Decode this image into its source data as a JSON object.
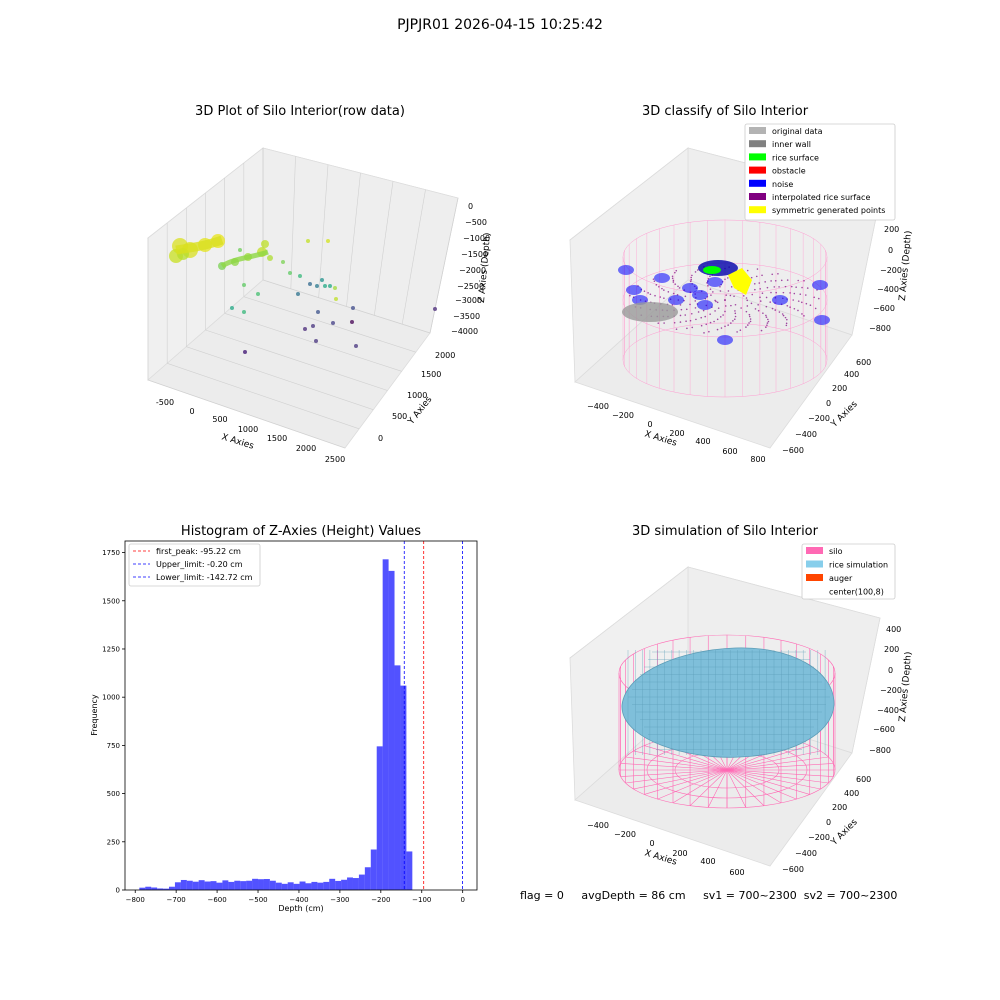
{
  "suptitle": "PJPJR01 2026-04-15 10:25:42",
  "panels": {
    "raw": {
      "title": "3D Plot of Silo Interior(row data)",
      "xlabel": "X Axies",
      "ylabel": "Y Axies",
      "zlabel": "Z Axies (Depth)",
      "xticks": [
        "-500",
        "0",
        "500",
        "1000",
        "1500",
        "2000",
        "2500"
      ],
      "yticks": [
        "0",
        "500",
        "1000",
        "1500",
        "2000"
      ],
      "zticks": [
        "0",
        "−500",
        "−1000",
        "−1500",
        "−2000",
        "−2500",
        "−3000",
        "−3500",
        "−4000"
      ],
      "colormap": "viridis"
    },
    "classify": {
      "title": "3D classify of Silo Interior",
      "xlabel": "X Axies",
      "ylabel": "Y Axies",
      "zlabel": "Z Axies (Depth)",
      "xticks": [
        "−400",
        "−200",
        "0",
        "200",
        "400",
        "600",
        "800"
      ],
      "yticks": [
        "−600",
        "−400",
        "−200",
        "0",
        "200",
        "400",
        "600"
      ],
      "zticks": [
        "200",
        "0",
        "−200",
        "−400",
        "−600",
        "−800"
      ],
      "legend": [
        {
          "label": "original data",
          "color": "#b3b3b3"
        },
        {
          "label": "inner wall",
          "color": "#808080"
        },
        {
          "label": "rice surface",
          "color": "#00ff00"
        },
        {
          "label": "obstacle",
          "color": "#ff0000"
        },
        {
          "label": "noise",
          "color": "#0000ff"
        },
        {
          "label": "interpolated rice surface",
          "color": "#800080"
        },
        {
          "label": "symmetric generated points",
          "color": "#ffff00"
        }
      ]
    },
    "simulation": {
      "title": "3D simulation of Silo Interior",
      "xlabel": "X Axies",
      "ylabel": "Y Axies",
      "zlabel": "Z Axies (Depth)",
      "xticks": [
        "−400",
        "−200",
        "0",
        "200",
        "400",
        "600"
      ],
      "yticks": [
        "−600",
        "−400",
        "−200",
        "0",
        "200",
        "400",
        "600"
      ],
      "zticks": [
        "400",
        "200",
        "0",
        "−200",
        "−400",
        "−600",
        "−800"
      ],
      "legend": [
        {
          "label": "silo",
          "color": "#ff69b4"
        },
        {
          "label": "rice simulation",
          "color": "#87ceeb"
        },
        {
          "label": "auger",
          "color": "#ff4500"
        },
        {
          "label": "center(100,8)",
          "color": ""
        }
      ]
    }
  },
  "footer": {
    "flag": "flag = 0",
    "avg_depth": "avgDepth = 86 cm",
    "sv1": "sv1 = 700~2300",
    "sv2": "sv2 = 700~2300"
  },
  "chart_data": [
    {
      "type": "bar",
      "title": "Histogram of Z-Axies (Height) Values",
      "xlabel": "Depth (cm)",
      "ylabel": "Frequency",
      "xlim": [
        -825,
        35
      ],
      "ylim": [
        0,
        1810
      ],
      "xticks": [
        -800,
        -700,
        -600,
        -500,
        -400,
        -300,
        -200,
        -100,
        0
      ],
      "yticks": [
        0,
        250,
        500,
        750,
        1000,
        1250,
        1500,
        1750
      ],
      "bin_width": 14.5,
      "bin_start": -790,
      "values": [
        12,
        17,
        13,
        8,
        7,
        17,
        40,
        52,
        48,
        43,
        51,
        44,
        46,
        38,
        50,
        42,
        48,
        46,
        48,
        58,
        56,
        57,
        48,
        38,
        32,
        40,
        32,
        44,
        35,
        42,
        38,
        42,
        58,
        47,
        53,
        65,
        62,
        80,
        118,
        210,
        745,
        1715,
        1655,
        1165,
        1060,
        200
      ],
      "color": "#0000ff",
      "lines": [
        {
          "label": "first_peak: -95.22 cm",
          "x": -95.22,
          "color": "#ff0000"
        },
        {
          "label": "Upper_limit: -0.20 cm",
          "x": -0.2,
          "color": "#0000ff"
        },
        {
          "label": "Lower_limit: -142.72 cm",
          "x": -142.72,
          "color": "#0000ff"
        }
      ]
    }
  ]
}
